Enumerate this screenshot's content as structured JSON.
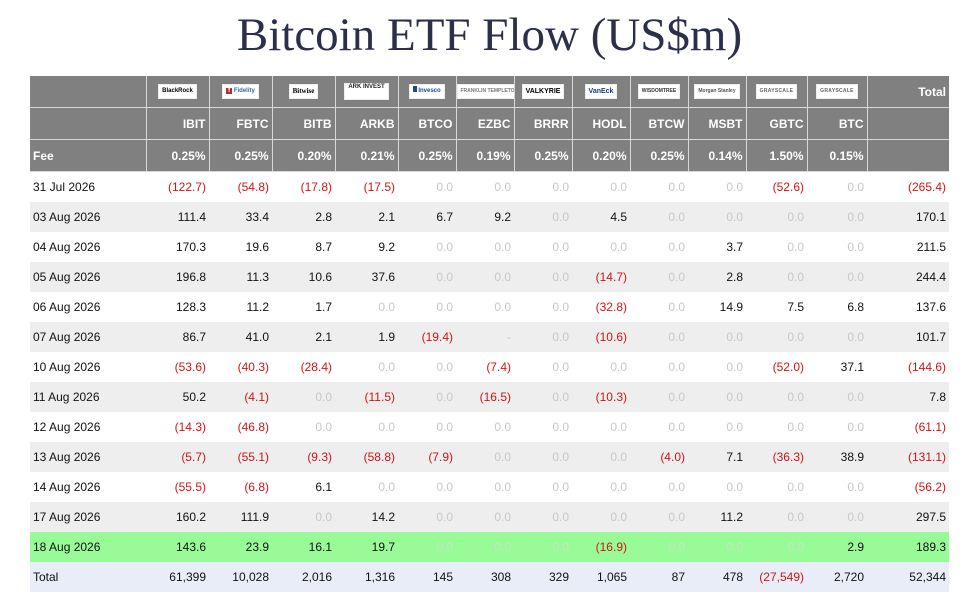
{
  "page": {
    "title": "Bitcoin ETF Flow (US$m)"
  },
  "header": {
    "total_label": "Total",
    "fee_label": "Fee",
    "columns": [
      {
        "logo_text": "BlackRock",
        "ticker": "IBIT",
        "fee": "0.25%"
      },
      {
        "logo_text": "Fidelity",
        "ticker": "FBTC",
        "fee": "0.25%"
      },
      {
        "logo_text": "Bitwise",
        "ticker": "BITB",
        "fee": "0.20%"
      },
      {
        "logo_text": "ARK INVEST",
        "ticker": "ARKB",
        "fee": "0.21%"
      },
      {
        "logo_text": "Invesco",
        "ticker": "BTCO",
        "fee": "0.25%"
      },
      {
        "logo_text": "FRANKLIN TEMPLETON",
        "ticker": "EZBC",
        "fee": "0.19%"
      },
      {
        "logo_text": "VALKYRIE",
        "ticker": "BRRR",
        "fee": "0.25%"
      },
      {
        "logo_text": "VanEck",
        "ticker": "HODL",
        "fee": "0.20%"
      },
      {
        "logo_text": "WISDOMTREE",
        "ticker": "BTCW",
        "fee": "0.25%"
      },
      {
        "logo_text": "Morgan Stanley",
        "ticker": "MSBT",
        "fee": "0.14%"
      },
      {
        "logo_text": "GRAYSCALE",
        "ticker": "GBTC",
        "fee": "1.50%"
      },
      {
        "logo_text": "GRAYSCALE",
        "ticker": "BTC",
        "fee": "0.15%"
      }
    ]
  },
  "rows": [
    {
      "date": "31 Jul 2026",
      "values": [
        "(122.7)",
        "(54.8)",
        "(17.8)",
        "(17.5)",
        "0.0",
        "0.0",
        "0.0",
        "0.0",
        "0.0",
        "0.0",
        "(52.6)",
        "0.0"
      ],
      "total": "(265.4)"
    },
    {
      "date": "03 Aug 2026",
      "values": [
        "111.4",
        "33.4",
        "2.8",
        "2.1",
        "6.7",
        "9.2",
        "0.0",
        "4.5",
        "0.0",
        "0.0",
        "0.0",
        "0.0"
      ],
      "total": "170.1"
    },
    {
      "date": "04 Aug 2026",
      "values": [
        "170.3",
        "19.6",
        "8.7",
        "9.2",
        "0.0",
        "0.0",
        "0.0",
        "0.0",
        "0.0",
        "3.7",
        "0.0",
        "0.0"
      ],
      "total": "211.5"
    },
    {
      "date": "05 Aug 2026",
      "values": [
        "196.8",
        "11.3",
        "10.6",
        "37.6",
        "0.0",
        "0.0",
        "0.0",
        "(14.7)",
        "0.0",
        "2.8",
        "0.0",
        "0.0"
      ],
      "total": "244.4"
    },
    {
      "date": "06 Aug 2026",
      "values": [
        "128.3",
        "11.2",
        "1.7",
        "0.0",
        "0.0",
        "0.0",
        "0.0",
        "(32.8)",
        "0.0",
        "14.9",
        "7.5",
        "6.8"
      ],
      "total": "137.6"
    },
    {
      "date": "07 Aug 2026",
      "values": [
        "86.7",
        "41.0",
        "2.1",
        "1.9",
        "(19.4)",
        "-",
        "0.0",
        "(10.6)",
        "0.0",
        "0.0",
        "0.0",
        "0.0"
      ],
      "total": "101.7"
    },
    {
      "date": "10 Aug 2026",
      "values": [
        "(53.6)",
        "(40.3)",
        "(28.4)",
        "0.0",
        "0.0",
        "(7.4)",
        "0.0",
        "0.0",
        "0.0",
        "0.0",
        "(52.0)",
        "37.1"
      ],
      "total": "(144.6)"
    },
    {
      "date": "11 Aug 2026",
      "values": [
        "50.2",
        "(4.1)",
        "0.0",
        "(11.5)",
        "0.0",
        "(16.5)",
        "0.0",
        "(10.3)",
        "0.0",
        "0.0",
        "0.0",
        "0.0"
      ],
      "total": "7.8"
    },
    {
      "date": "12 Aug 2026",
      "values": [
        "(14.3)",
        "(46.8)",
        "0.0",
        "0.0",
        "0.0",
        "0.0",
        "0.0",
        "0.0",
        "0.0",
        "0.0",
        "0.0",
        "0.0"
      ],
      "total": "(61.1)"
    },
    {
      "date": "13 Aug 2026",
      "values": [
        "(5.7)",
        "(55.1)",
        "(9.3)",
        "(58.8)",
        "(7.9)",
        "0.0",
        "0.0",
        "0.0",
        "(4.0)",
        "7.1",
        "(36.3)",
        "38.9"
      ],
      "total": "(131.1)"
    },
    {
      "date": "14 Aug 2026",
      "values": [
        "(55.5)",
        "(6.8)",
        "6.1",
        "0.0",
        "0.0",
        "0.0",
        "0.0",
        "0.0",
        "0.0",
        "0.0",
        "0.0",
        "0.0"
      ],
      "total": "(56.2)"
    },
    {
      "date": "17 Aug 2026",
      "values": [
        "160.2",
        "111.9",
        "0.0",
        "14.2",
        "0.0",
        "0.0",
        "0.0",
        "0.0",
        "0.0",
        "11.2",
        "0.0",
        "0.0"
      ],
      "total": "297.5"
    },
    {
      "date": "18 Aug 2026",
      "values": [
        "143.6",
        "23.9",
        "16.1",
        "19.7",
        "0.0",
        "0.0",
        "0.0",
        "(16.9)",
        "0.0",
        "0.0",
        "0.0",
        "2.9"
      ],
      "total": "189.3",
      "highlighted": true
    }
  ],
  "footer": {
    "label": "Total",
    "values": [
      "61,399",
      "10,028",
      "2,016",
      "1,316",
      "145",
      "308",
      "329",
      "1,065",
      "87",
      "478",
      "(27,549)",
      "2,720"
    ],
    "total": "52,344"
  },
  "colors": {
    "header_bg": "#808080",
    "negative": "#d21414",
    "zero": "#c8c8c8",
    "highlight_row": "#98fb98",
    "total_row": "#e8edf7"
  }
}
